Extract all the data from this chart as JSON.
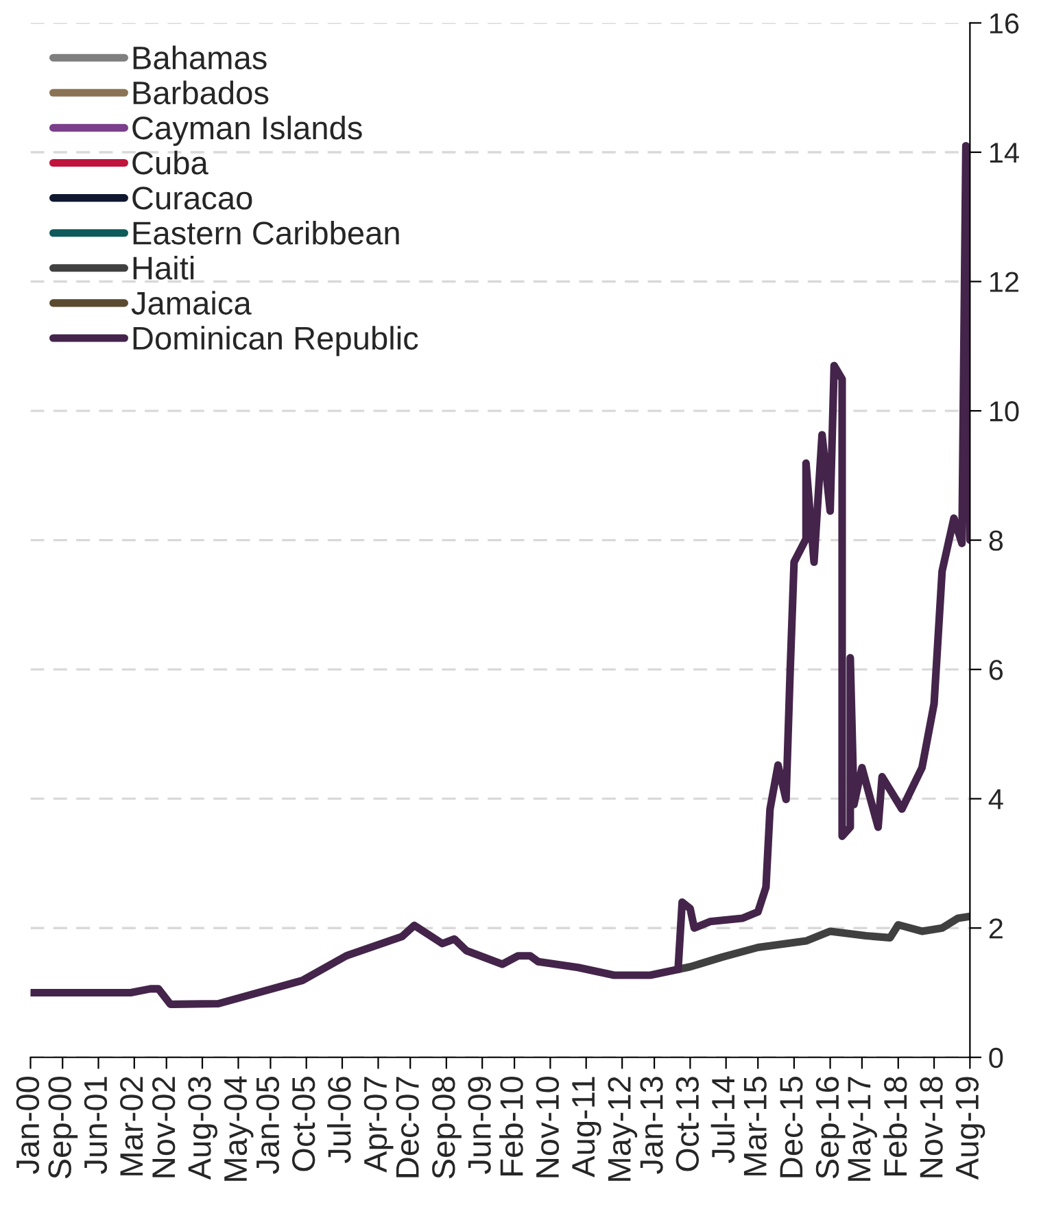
{
  "chart_data": {
    "type": "line",
    "xlim": [
      "2000-01",
      "2019-08"
    ],
    "xticks": [
      {
        "value": "2000-01",
        "label": "Jan-00"
      },
      {
        "value": "2000-09",
        "label": "Sep-00"
      },
      {
        "value": "2001-06",
        "label": "Jun-01"
      },
      {
        "value": "2002-03",
        "label": "Mar-02"
      },
      {
        "value": "2002-11",
        "label": "Nov-02"
      },
      {
        "value": "2003-08",
        "label": "Aug-03"
      },
      {
        "value": "2004-05",
        "label": "May-04"
      },
      {
        "value": "2005-01",
        "label": "Jan-05"
      },
      {
        "value": "2005-10",
        "label": "Oct-05"
      },
      {
        "value": "2006-07",
        "label": "Jul-06"
      },
      {
        "value": "2007-04",
        "label": "Apr-07"
      },
      {
        "value": "2007-12",
        "label": "Dec-07"
      },
      {
        "value": "2008-09",
        "label": "Sep-08"
      },
      {
        "value": "2009-06",
        "label": "Jun-09"
      },
      {
        "value": "2010-02",
        "label": "Feb-10"
      },
      {
        "value": "2010-11",
        "label": "Nov-10"
      },
      {
        "value": "2011-08",
        "label": "Aug-11"
      },
      {
        "value": "2012-05",
        "label": "May-12"
      },
      {
        "value": "2013-01",
        "label": "Jan-13"
      },
      {
        "value": "2013-10",
        "label": "Oct-13"
      },
      {
        "value": "2014-07",
        "label": "Jul-14"
      },
      {
        "value": "2015-03",
        "label": "Mar-15"
      },
      {
        "value": "2015-12",
        "label": "Dec-15"
      },
      {
        "value": "2016-09",
        "label": "Sep-16"
      },
      {
        "value": "2017-05",
        "label": "May-17"
      },
      {
        "value": "2018-02",
        "label": "Feb-18"
      },
      {
        "value": "2018-11",
        "label": "Nov-18"
      },
      {
        "value": "2019-08",
        "label": "Aug-19"
      }
    ],
    "ylim": [
      0,
      16
    ],
    "yticks": [
      0,
      2,
      4,
      6,
      8,
      10,
      12,
      14,
      16
    ],
    "grid": "y",
    "legend": "top left",
    "line_style": "solid",
    "marker": "none",
    "series": [
      {
        "name": "Bahamas",
        "color": "#7f7f7f"
      },
      {
        "name": "Barbados",
        "color": "#8b7355"
      },
      {
        "name": "Cayman Islands",
        "color": "#7b3f8c"
      },
      {
        "name": "Cuba",
        "color": "#c0143c"
      },
      {
        "name": "Curacao",
        "color": "#101830"
      },
      {
        "name": "Eastern Caribbean",
        "color": "#0f5a5a"
      },
      {
        "name": "Haiti",
        "color": "#404040",
        "x": [
          "2013-07",
          "2013-10",
          "2014-06",
          "2015-03",
          "2016-03",
          "2016-09",
          "2017-06",
          "2017-12",
          "2018-02",
          "2018-08",
          "2019-01",
          "2019-05",
          "2019-08"
        ],
        "values": [
          1.36,
          1.4,
          1.55,
          1.7,
          1.8,
          1.95,
          1.88,
          1.85,
          2.05,
          1.95,
          2.0,
          2.15,
          2.18
        ]
      },
      {
        "name": "Jamaica",
        "color": "#5a4a30"
      },
      {
        "name": "Dominican Republic",
        "color": "#44244a",
        "x": [
          "2000-01",
          "2002-02",
          "2002-07",
          "2002-09",
          "2002-12",
          "2003-12",
          "2005-09",
          "2006-08",
          "2007-10",
          "2008-01",
          "2008-08",
          "2008-11",
          "2009-02",
          "2009-11",
          "2010-03",
          "2010-06",
          "2010-08",
          "2011-06",
          "2012-03",
          "2012-12",
          "2013-07",
          "2013-08",
          "2013-10",
          "2013-11",
          "2014-03",
          "2014-11",
          "2015-03",
          "2015-05",
          "2015-06",
          "2015-08",
          "2015-10",
          "2015-11",
          "2015-12",
          "2016-03",
          "2016-03",
          "2016-05",
          "2016-07",
          "2016-09",
          "2016-10",
          "2016-12",
          "2016-12",
          "2017-02",
          "2017-02",
          "2017-03",
          "2017-05",
          "2017-09",
          "2017-10",
          "2018-03",
          "2018-08",
          "2018-11",
          "2019-01",
          "2019-04",
          "2019-06",
          "2019-07",
          "2019-08"
        ],
        "values": [
          1.0,
          1.0,
          1.06,
          1.06,
          0.82,
          0.83,
          1.19,
          1.57,
          1.87,
          2.04,
          1.76,
          1.83,
          1.65,
          1.44,
          1.57,
          1.57,
          1.48,
          1.39,
          1.27,
          1.27,
          1.36,
          2.4,
          2.3,
          2.0,
          2.1,
          2.15,
          2.25,
          2.63,
          3.84,
          4.52,
          3.99,
          5.96,
          7.66,
          8.02,
          9.19,
          7.66,
          9.63,
          8.45,
          10.7,
          10.49,
          3.42,
          3.56,
          6.18,
          3.91,
          4.48,
          3.56,
          4.34,
          3.84,
          4.48,
          5.47,
          7.52,
          8.34,
          7.95,
          14.1,
          8.0
        ]
      }
    ]
  }
}
